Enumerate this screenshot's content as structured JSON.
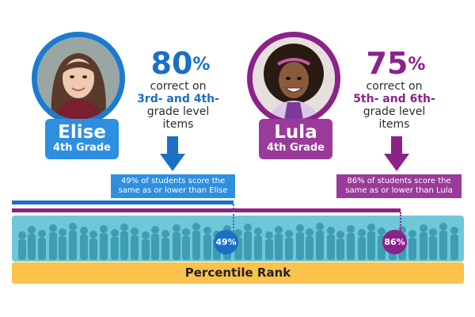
{
  "students": {
    "elise": {
      "name": "Elise",
      "grade": "4th Grade",
      "percent_value": "80",
      "percent_sign": "%",
      "desc_line1": "correct on",
      "desc_highlight": "3rd- and 4th-",
      "desc_line3": "grade level",
      "desc_line4": "items",
      "callout": "49% of students score the same as or lower than Elise",
      "percentile": 49,
      "percentile_label": "49%",
      "color": "#1b6fc5"
    },
    "lula": {
      "name": "Lula",
      "grade": "4th Grade",
      "percent_value": "75",
      "percent_sign": "%",
      "desc_line1": "correct on",
      "desc_highlight": "5th- and 6th-",
      "desc_line3": "grade level",
      "desc_line4": "items",
      "callout": "86% of students score the same as or lower than Lula",
      "percentile": 86,
      "percentile_label": "86%",
      "color": "#8b2289"
    }
  },
  "scale": {
    "label": "Percentile Rank"
  }
}
